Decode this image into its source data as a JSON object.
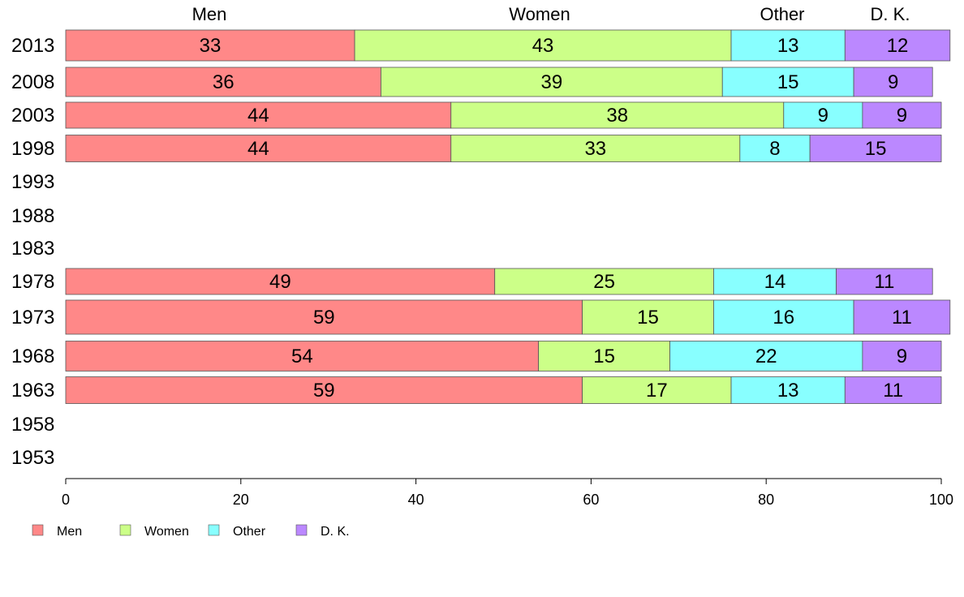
{
  "chart_data": {
    "type": "bar",
    "orientation": "horizontal",
    "stacked": true,
    "categories": [
      "2013",
      "2008",
      "2003",
      "1998",
      "1993",
      "1988",
      "1983",
      "1978",
      "1973",
      "1968",
      "1963",
      "1958",
      "1953"
    ],
    "series": [
      {
        "name": "Men",
        "color": "#FF8888",
        "values": [
          33,
          36,
          44,
          44,
          null,
          null,
          null,
          49,
          59,
          54,
          59,
          null,
          null
        ]
      },
      {
        "name": "Women",
        "color": "#CCFF88",
        "values": [
          43,
          39,
          38,
          33,
          null,
          null,
          null,
          25,
          15,
          15,
          17,
          null,
          null
        ]
      },
      {
        "name": "Other",
        "color": "#88FFFF",
        "values": [
          13,
          15,
          9,
          8,
          null,
          null,
          null,
          14,
          16,
          22,
          13,
          null,
          null
        ]
      },
      {
        "name": "D. K.",
        "color": "#BB88FF",
        "values": [
          12,
          9,
          9,
          15,
          null,
          null,
          null,
          11,
          11,
          9,
          11,
          null,
          null
        ]
      }
    ],
    "xlim": [
      0,
      100
    ],
    "xticks": [
      0,
      20,
      40,
      60,
      80,
      100
    ],
    "column_headers": [
      "Men",
      "Women",
      "Other",
      "D. K."
    ],
    "legend": {
      "position": "bottom-left",
      "entries": [
        "Men",
        "Women",
        "Other",
        "D. K."
      ]
    },
    "grid": false
  }
}
